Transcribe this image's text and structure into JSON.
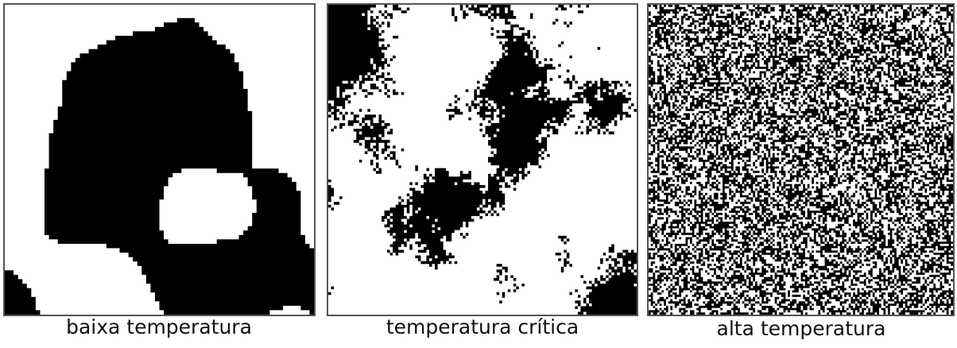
{
  "panels": [
    {
      "caption": "baixa temperatura"
    },
    {
      "caption": "temperatura crítica"
    },
    {
      "caption": "alta temperatura"
    }
  ]
}
